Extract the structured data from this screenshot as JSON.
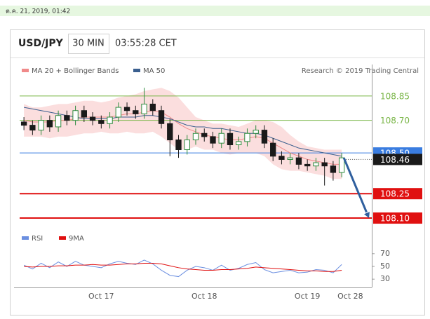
{
  "date": "ต.ค. 21, 2019, 01:42",
  "header": {
    "symbol": "USD/JPY",
    "interval": "30 MIN",
    "time": "03:55:28 CET"
  },
  "credit": "Research © 2019 Trading Central",
  "chart_data": {
    "type": "candlestick",
    "categories": [
      null,
      null,
      null,
      null,
      null,
      null,
      null,
      null,
      null,
      "Oct 17",
      null,
      null,
      null,
      null,
      null,
      null,
      null,
      null,
      null,
      null,
      null,
      "Oct 18",
      null,
      null,
      null,
      null,
      null,
      null,
      null,
      null,
      null,
      null,
      null,
      "Oct 19",
      null,
      null,
      null,
      null,
      "Oct 28",
      null,
      null
    ],
    "open": [
      108.69,
      108.67,
      108.64,
      108.7,
      108.66,
      108.73,
      108.7,
      108.76,
      108.72,
      108.7,
      108.68,
      108.72,
      108.78,
      108.76,
      108.74,
      108.8,
      108.76,
      108.68,
      108.58,
      108.52,
      108.58,
      108.62,
      108.6,
      108.56,
      108.62,
      108.55,
      108.57,
      108.62,
      108.64,
      108.56,
      108.48,
      108.46,
      108.47,
      108.43,
      108.42,
      108.44,
      108.42,
      108.38,
      null,
      null,
      null
    ],
    "high": [
      108.72,
      108.7,
      108.73,
      108.73,
      108.76,
      108.76,
      108.79,
      108.79,
      108.75,
      108.73,
      108.75,
      108.81,
      108.81,
      108.79,
      108.9,
      108.83,
      108.79,
      108.71,
      108.61,
      108.61,
      108.65,
      108.65,
      108.63,
      108.65,
      108.65,
      108.6,
      108.65,
      108.67,
      108.67,
      108.59,
      108.51,
      108.5,
      108.5,
      108.46,
      108.47,
      108.47,
      108.45,
      108.5,
      null,
      null,
      null
    ],
    "low": [
      108.64,
      108.61,
      108.61,
      108.63,
      108.63,
      108.67,
      108.67,
      108.69,
      108.67,
      108.65,
      108.65,
      108.69,
      108.73,
      108.71,
      108.71,
      108.73,
      108.65,
      108.48,
      108.47,
      108.49,
      108.55,
      108.57,
      108.53,
      108.53,
      108.52,
      108.52,
      108.54,
      108.59,
      108.53,
      108.45,
      108.43,
      108.43,
      108.4,
      108.39,
      108.39,
      108.3,
      108.33,
      108.35,
      null,
      null,
      null
    ],
    "close": [
      108.67,
      108.64,
      108.7,
      108.66,
      108.73,
      108.7,
      108.76,
      108.72,
      108.7,
      108.68,
      108.72,
      108.78,
      108.76,
      108.74,
      108.8,
      108.76,
      108.68,
      108.58,
      108.52,
      108.58,
      108.62,
      108.6,
      108.56,
      108.62,
      108.55,
      108.57,
      108.62,
      108.64,
      108.56,
      108.48,
      108.46,
      108.47,
      108.43,
      108.42,
      108.44,
      108.42,
      108.38,
      108.47,
      null,
      null,
      null
    ],
    "up_color": "#2e8b3e",
    "down_color": "#1a1a1a",
    "series": [
      {
        "name": "MA 20 + Bollinger Bands",
        "color": "#f08a8a",
        "values": [
          108.7,
          108.69,
          108.69,
          108.69,
          108.7,
          108.7,
          108.71,
          108.72,
          108.72,
          108.72,
          108.72,
          108.73,
          108.74,
          108.74,
          108.75,
          108.76,
          108.75,
          108.72,
          108.68,
          108.65,
          108.63,
          108.61,
          108.6,
          108.59,
          108.58,
          108.58,
          108.59,
          108.6,
          108.59,
          108.56,
          108.53,
          108.5,
          108.48,
          108.46,
          108.45,
          108.44,
          108.43,
          108.43,
          null,
          null,
          null
        ],
        "upper": [
          108.8,
          108.78,
          108.78,
          108.79,
          108.8,
          108.8,
          108.81,
          108.82,
          108.82,
          108.81,
          108.82,
          108.84,
          108.85,
          108.86,
          108.88,
          108.89,
          108.9,
          108.88,
          108.84,
          108.78,
          108.72,
          108.7,
          108.68,
          108.68,
          108.67,
          108.66,
          108.68,
          108.7,
          108.7,
          108.69,
          108.66,
          108.61,
          108.57,
          108.54,
          108.53,
          108.52,
          108.52,
          108.52,
          null,
          null,
          null
        ],
        "lower": [
          108.6,
          108.6,
          108.6,
          108.59,
          108.6,
          108.6,
          108.61,
          108.62,
          108.62,
          108.63,
          108.62,
          108.62,
          108.63,
          108.62,
          108.62,
          108.63,
          108.6,
          108.56,
          108.52,
          108.52,
          108.54,
          108.52,
          108.52,
          108.5,
          108.49,
          108.5,
          108.5,
          108.5,
          108.48,
          108.43,
          108.4,
          108.39,
          108.39,
          108.38,
          108.37,
          108.36,
          108.34,
          108.34,
          null,
          null,
          null
        ]
      },
      {
        "name": "MA 50",
        "color": "#3b5f8f",
        "values": [
          108.78,
          108.77,
          108.76,
          108.75,
          108.74,
          108.73,
          108.72,
          108.71,
          108.71,
          108.71,
          108.71,
          108.72,
          108.72,
          108.72,
          108.73,
          108.73,
          108.72,
          108.71,
          108.69,
          108.67,
          108.66,
          108.66,
          108.65,
          108.65,
          108.64,
          108.63,
          108.62,
          108.62,
          108.61,
          108.59,
          108.57,
          108.55,
          108.53,
          108.52,
          108.51,
          108.5,
          108.49,
          108.48,
          null,
          null,
          null
        ]
      }
    ],
    "ylim": [
      108.04,
      109.03
    ],
    "levels": [
      {
        "value": 108.85,
        "label": "108.85",
        "color": "#7ab648",
        "style": "text",
        "width": 1
      },
      {
        "value": 108.7,
        "label": "108.70",
        "color": "#7ab648",
        "style": "text",
        "width": 1
      },
      {
        "value": 108.5,
        "label": "108.50",
        "color": "#3a7de0",
        "style": "box",
        "width": 1
      },
      {
        "value": 108.46,
        "label": "108.46",
        "color": "#1a1a1a",
        "style": "box",
        "width": 0
      },
      {
        "value": 108.25,
        "label": "108.25",
        "color": "#e01010",
        "style": "box",
        "width": 2
      },
      {
        "value": 108.1,
        "label": "108.10",
        "color": "#e01010",
        "style": "box",
        "width": 2
      }
    ],
    "forecast_color": "#2f5f9e",
    "rsi": {
      "series": [
        {
          "name": "RSI",
          "color": "#6b8fe0",
          "values": [
            52,
            46,
            55,
            48,
            57,
            50,
            58,
            52,
            50,
            48,
            54,
            58,
            55,
            53,
            60,
            54,
            44,
            36,
            34,
            44,
            50,
            48,
            44,
            52,
            44,
            47,
            53,
            56,
            45,
            40,
            42,
            44,
            40,
            41,
            45,
            44,
            40,
            53,
            null,
            null,
            null
          ]
        },
        {
          "name": "9MA",
          "color": "#e01010",
          "values": [
            50,
            49,
            50,
            50,
            51,
            51,
            52,
            52,
            53,
            52,
            52,
            53,
            54,
            54,
            55,
            55,
            54,
            51,
            48,
            46,
            45,
            44,
            44,
            45,
            45,
            46,
            47,
            49,
            48,
            47,
            46,
            45,
            44,
            43,
            43,
            42,
            42,
            44,
            null,
            null,
            null
          ]
        }
      ],
      "ylim": [
        17,
        83
      ],
      "yticks": [
        30,
        50,
        70
      ]
    }
  }
}
